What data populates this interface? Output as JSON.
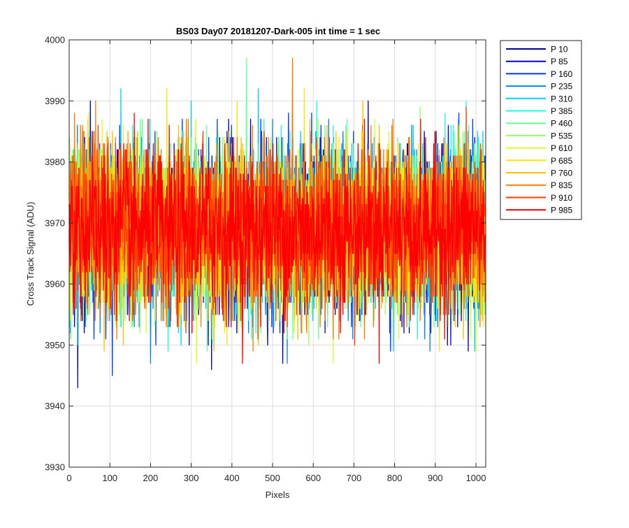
{
  "chart_data": {
    "type": "line",
    "title": "BS03 Day07 20181207-Dark-005 int time = 1 sec",
    "xlabel": "Pixels",
    "ylabel": "Cross Track Signal (ADU)",
    "xlim": [
      0,
      1024
    ],
    "ylim": [
      3930,
      4000
    ],
    "xticks": [
      0,
      100,
      200,
      300,
      400,
      500,
      600,
      700,
      800,
      900,
      1000
    ],
    "yticks": [
      3930,
      3940,
      3950,
      3960,
      3970,
      3980,
      3990,
      4000
    ],
    "grid": true,
    "legend_position": "outside-top-right",
    "series_style": {
      "mean": 3969,
      "noise_sigma": 6.5,
      "min_value": 3939,
      "max_value": 4000,
      "num_points": 1024
    },
    "series": [
      {
        "name": "P 10",
        "color": "#00008f"
      },
      {
        "name": "P 85",
        "color": "#0000db"
      },
      {
        "name": "P 160",
        "color": "#0037ff"
      },
      {
        "name": "P 235",
        "color": "#0083ff"
      },
      {
        "name": "P 310",
        "color": "#00cfff"
      },
      {
        "name": "P 385",
        "color": "#1cffe3"
      },
      {
        "name": "P 460",
        "color": "#67ff97"
      },
      {
        "name": "P 535",
        "color": "#97ff67"
      },
      {
        "name": "P 610",
        "color": "#d7ff28"
      },
      {
        "name": "P 685",
        "color": "#ffe400"
      },
      {
        "name": "P 760",
        "color": "#ffbf00"
      },
      {
        "name": "P 835",
        "color": "#ff7a00"
      },
      {
        "name": "P 910",
        "color": "#ff3e00"
      },
      {
        "name": "P 985",
        "color": "#ff0000"
      }
    ]
  }
}
